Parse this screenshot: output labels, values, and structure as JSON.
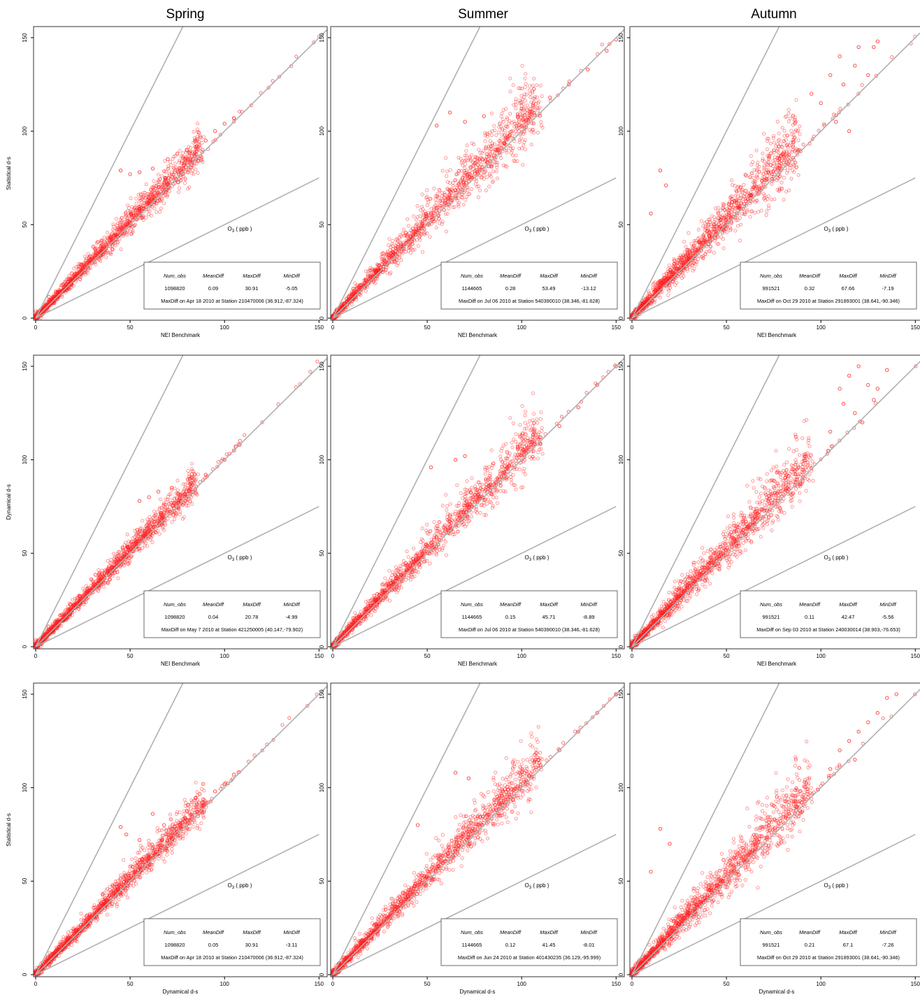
{
  "column_titles": [
    "Spring",
    "Summer",
    "Autumn"
  ],
  "colors": {
    "points": "#ff2020",
    "reference_lines": "#b0b0b0",
    "axis": "#000000"
  },
  "chart_data": [
    {
      "type": "scatter",
      "row": 0,
      "col": 0,
      "season": "Spring",
      "xlabel": "NEI Benchmark",
      "ylabel": "Statistical d-s",
      "annotation": "O3 ( ppb )",
      "xlim": [
        0,
        150
      ],
      "ylim": [
        0,
        150
      ],
      "xticks": [
        0,
        50,
        100,
        150
      ],
      "yticks": [
        0,
        50,
        100,
        150
      ],
      "reference_lines": [
        "1:2",
        "1:1",
        "2:1"
      ],
      "stats": {
        "Num_obs": "1098820",
        "MeanDiff": "0.09",
        "MaxDiff": "30.91",
        "MinDiff": "-5.05"
      },
      "maxdiff_note": "MaxDiff on Apr 18 2010 at Station 210470006 (36.912,-87.324)",
      "cloud": {
        "xmax": 88,
        "spread": 0.22,
        "outliers": [
          [
            45,
            79
          ],
          [
            50,
            77
          ],
          [
            55,
            78
          ],
          [
            62,
            80
          ],
          [
            70,
            85
          ],
          [
            75,
            88
          ],
          [
            80,
            90
          ],
          [
            90,
            95
          ],
          [
            95,
            100
          ],
          [
            100,
            104
          ],
          [
            105,
            107
          ]
        ]
      }
    },
    {
      "type": "scatter",
      "row": 0,
      "col": 1,
      "season": "Summer",
      "xlabel": "NEI Benchmark",
      "ylabel": "",
      "annotation": "O3 ( ppb )",
      "xlim": [
        0,
        150
      ],
      "ylim": [
        0,
        150
      ],
      "xticks": [
        0,
        50,
        100,
        150
      ],
      "yticks": [
        0,
        50,
        100,
        150
      ],
      "reference_lines": [
        "1:2",
        "1:1",
        "2:1"
      ],
      "stats": {
        "Num_obs": "1144665",
        "MeanDiff": "0.28",
        "MaxDiff": "53.49",
        "MinDiff": "-13.12"
      },
      "maxdiff_note": "MaxDiff on Jul 06 2010 at Station 540390010 (38.346,-81.628)",
      "cloud": {
        "xmax": 110,
        "spread": 0.32,
        "outliers": [
          [
            55,
            103
          ],
          [
            62,
            110
          ],
          [
            70,
            105
          ],
          [
            80,
            108
          ],
          [
            100,
            112
          ],
          [
            115,
            118
          ],
          [
            125,
            125
          ],
          [
            135,
            133
          ],
          [
            145,
            143
          ],
          [
            150,
            149
          ]
        ]
      }
    },
    {
      "type": "scatter",
      "row": 0,
      "col": 2,
      "season": "Autumn",
      "xlabel": "NEI Benchmark",
      "ylabel": "",
      "annotation": "O3 ( ppb )",
      "xlim": [
        0,
        150
      ],
      "ylim": [
        0,
        150
      ],
      "xticks": [
        0,
        50,
        100,
        150
      ],
      "yticks": [
        0,
        50,
        100,
        150
      ],
      "reference_lines": [
        "1:2",
        "1:1",
        "2:1"
      ],
      "stats": {
        "Num_obs": "991521",
        "MeanDiff": "0.32",
        "MaxDiff": "67.66",
        "MinDiff": "-7.19"
      },
      "maxdiff_note": "MaxDiff on Oct 29 2010 at Station 291893001 (38.641,-90.346)",
      "cloud": {
        "xmax": 88,
        "spread": 0.42,
        "outliers": [
          [
            15,
            79
          ],
          [
            18,
            71
          ],
          [
            10,
            56
          ],
          [
            95,
            120
          ],
          [
            100,
            115
          ],
          [
            105,
            130
          ],
          [
            110,
            140
          ],
          [
            112,
            125
          ],
          [
            118,
            135
          ],
          [
            120,
            145
          ],
          [
            125,
            130
          ],
          [
            128,
            145
          ],
          [
            130,
            148
          ],
          [
            115,
            100
          ],
          [
            108,
            105
          ]
        ]
      }
    },
    {
      "type": "scatter",
      "row": 1,
      "col": 0,
      "season": "Spring",
      "xlabel": "NEI Benchmark",
      "ylabel": "Dynamical d-s",
      "annotation": "O3 ( ppb )",
      "xlim": [
        0,
        150
      ],
      "ylim": [
        0,
        150
      ],
      "xticks": [
        0,
        50,
        100,
        150
      ],
      "yticks": [
        0,
        50,
        100,
        150
      ],
      "reference_lines": [
        "1:2",
        "1:1",
        "2:1"
      ],
      "stats": {
        "Num_obs": "1098820",
        "MeanDiff": "0.04",
        "MaxDiff": "20.78",
        "MinDiff": "-4.99"
      },
      "maxdiff_note": "MaxDiff on May 7 2010 at Station 421250005 (40.147,-79.902)",
      "cloud": {
        "xmax": 85,
        "spread": 0.18,
        "outliers": [
          [
            55,
            78
          ],
          [
            60,
            80
          ],
          [
            65,
            83
          ],
          [
            72,
            85
          ],
          [
            90,
            92
          ],
          [
            100,
            100
          ],
          [
            105,
            105
          ],
          [
            108,
            108
          ]
        ]
      }
    },
    {
      "type": "scatter",
      "row": 1,
      "col": 1,
      "season": "Summer",
      "xlabel": "NEI Benchmark",
      "ylabel": "",
      "annotation": "O3 ( ppb )",
      "xlim": [
        0,
        150
      ],
      "ylim": [
        0,
        150
      ],
      "xticks": [
        0,
        50,
        100,
        150
      ],
      "yticks": [
        0,
        50,
        100,
        150
      ],
      "reference_lines": [
        "1:2",
        "1:1",
        "2:1"
      ],
      "stats": {
        "Num_obs": "1144665",
        "MeanDiff": "0.15",
        "MaxDiff": "45.71",
        "MinDiff": "-8.89"
      },
      "maxdiff_note": "MaxDiff on Jul 06 2010 at Station 540390010 (38.346,-81.628)",
      "cloud": {
        "xmax": 110,
        "spread": 0.26,
        "outliers": [
          [
            52,
            96
          ],
          [
            65,
            100
          ],
          [
            70,
            102
          ],
          [
            85,
            98
          ],
          [
            110,
            112
          ],
          [
            120,
            118
          ],
          [
            130,
            128
          ],
          [
            140,
            140
          ],
          [
            150,
            150
          ]
        ]
      }
    },
    {
      "type": "scatter",
      "row": 1,
      "col": 2,
      "season": "Autumn",
      "xlabel": "NEI Benchmark",
      "ylabel": "",
      "annotation": "O3 ( ppb )",
      "xlim": [
        0,
        150
      ],
      "ylim": [
        0,
        150
      ],
      "xticks": [
        0,
        50,
        100,
        150
      ],
      "yticks": [
        0,
        50,
        100,
        150
      ],
      "reference_lines": [
        "1:2",
        "1:1",
        "2:1"
      ],
      "stats": {
        "Num_obs": "991521",
        "MeanDiff": "0.11",
        "MaxDiff": "42.47",
        "MinDiff": "-5.56"
      },
      "maxdiff_note": "MaxDiff on Sep 03 2010 at Station 240030014 (38.903,-76.653)",
      "cloud": {
        "xmax": 95,
        "spread": 0.34,
        "outliers": [
          [
            110,
            138
          ],
          [
            115,
            145
          ],
          [
            120,
            150
          ],
          [
            125,
            140
          ],
          [
            128,
            132
          ],
          [
            118,
            125
          ],
          [
            122,
            120
          ],
          [
            112,
            130
          ],
          [
            105,
            115
          ],
          [
            130,
            138
          ],
          [
            135,
            148
          ]
        ]
      }
    },
    {
      "type": "scatter",
      "row": 2,
      "col": 0,
      "season": "Spring",
      "xlabel": "Dynamical d-s",
      "ylabel": "Statistical d-s",
      "annotation": "O3 ( ppb )",
      "xlim": [
        0,
        150
      ],
      "ylim": [
        0,
        150
      ],
      "xticks": [
        0,
        50,
        100,
        150
      ],
      "yticks": [
        0,
        50,
        100,
        150
      ],
      "reference_lines": [
        "1:2",
        "1:1",
        "2:1"
      ],
      "stats": {
        "Num_obs": "1098820",
        "MeanDiff": "0.05",
        "MaxDiff": "30.91",
        "MinDiff": "-3.11"
      },
      "maxdiff_note": "MaxDiff on Apr 18 2010 at Station 210470006 (36.912,-87.324)",
      "cloud": {
        "xmax": 90,
        "spread": 0.2,
        "outliers": [
          [
            45,
            79
          ],
          [
            48,
            75
          ],
          [
            55,
            72
          ],
          [
            62,
            86
          ],
          [
            68,
            80
          ],
          [
            95,
            98
          ],
          [
            100,
            102
          ],
          [
            105,
            107
          ]
        ]
      }
    },
    {
      "type": "scatter",
      "row": 2,
      "col": 1,
      "season": "Summer",
      "xlabel": "Dynamical d-s",
      "ylabel": "",
      "annotation": "O3 ( ppb )",
      "xlim": [
        0,
        150
      ],
      "ylim": [
        0,
        150
      ],
      "xticks": [
        0,
        50,
        100,
        150
      ],
      "yticks": [
        0,
        50,
        100,
        150
      ],
      "reference_lines": [
        "1:2",
        "1:1",
        "2:1"
      ],
      "stats": {
        "Num_obs": "1144665",
        "MeanDiff": "0.12",
        "MaxDiff": "41.45",
        "MinDiff": "-8.01"
      },
      "maxdiff_note": "MaxDiff on Jun 24 2010 at Station 401430235 (36.129,-95.999)",
      "cloud": {
        "xmax": 110,
        "spread": 0.26,
        "outliers": [
          [
            45,
            80
          ],
          [
            65,
            108
          ],
          [
            72,
            105
          ],
          [
            90,
            98
          ],
          [
            110,
            112
          ],
          [
            120,
            120
          ],
          [
            130,
            130
          ],
          [
            140,
            140
          ],
          [
            150,
            150
          ]
        ]
      }
    },
    {
      "type": "scatter",
      "row": 2,
      "col": 2,
      "season": "Autumn",
      "xlabel": "Dynamical d-s",
      "ylabel": "",
      "annotation": "O3 ( ppb )",
      "xlim": [
        0,
        150
      ],
      "ylim": [
        0,
        150
      ],
      "xticks": [
        0,
        50,
        100,
        150
      ],
      "yticks": [
        0,
        50,
        100,
        150
      ],
      "reference_lines": [
        "1:2",
        "1:1",
        "2:1"
      ],
      "stats": {
        "Num_obs": "991521",
        "MeanDiff": "0.21",
        "MaxDiff": "67.1",
        "MinDiff": "-7.26"
      },
      "maxdiff_note": "MaxDiff on Oct 29 2010 at Station 291893001 (38.641,-90.346)",
      "cloud": {
        "xmax": 95,
        "spread": 0.38,
        "outliers": [
          [
            15,
            78
          ],
          [
            20,
            70
          ],
          [
            10,
            55
          ],
          [
            105,
            110
          ],
          [
            110,
            120
          ],
          [
            115,
            125
          ],
          [
            120,
            130
          ],
          [
            125,
            135
          ],
          [
            130,
            140
          ],
          [
            135,
            148
          ],
          [
            140,
            150
          ],
          [
            118,
            115
          ]
        ]
      }
    }
  ]
}
